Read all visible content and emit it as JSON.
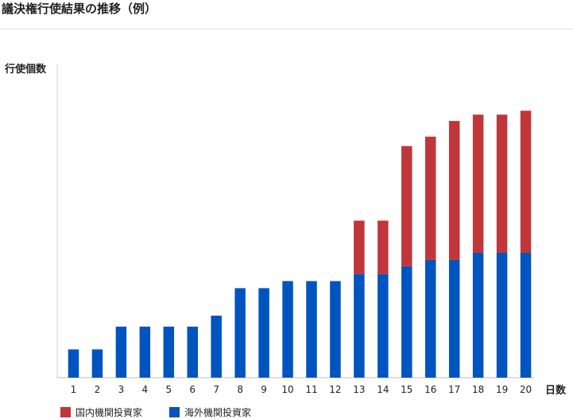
{
  "page": {
    "title": "議決権行使結果の推移（例）"
  },
  "chart_data": {
    "type": "bar",
    "stacked": true,
    "xlabel": "日数",
    "ylabel": "行使個数",
    "categories": [
      "1",
      "2",
      "3",
      "4",
      "5",
      "6",
      "7",
      "8",
      "9",
      "10",
      "11",
      "12",
      "13",
      "14",
      "15",
      "16",
      "17",
      "18",
      "19",
      "20"
    ],
    "series": [
      {
        "name": "海外機関投資家",
        "color": "#0054c0",
        "values": [
          36,
          36,
          65,
          65,
          65,
          65,
          79,
          114,
          114,
          123,
          123,
          123,
          132,
          132,
          142,
          150,
          150,
          159,
          159,
          159
        ]
      },
      {
        "name": "国内機関投資家",
        "color": "#c0363a",
        "values": [
          0,
          0,
          0,
          0,
          0,
          0,
          0,
          0,
          0,
          0,
          0,
          0,
          68,
          68,
          153,
          157,
          177,
          176,
          176,
          181
        ]
      }
    ],
    "ylim": [
      0,
      400
    ],
    "grid": false,
    "legend": "bottom-left",
    "legend_order": [
      "国内機関投資家",
      "海外機関投資家"
    ]
  }
}
